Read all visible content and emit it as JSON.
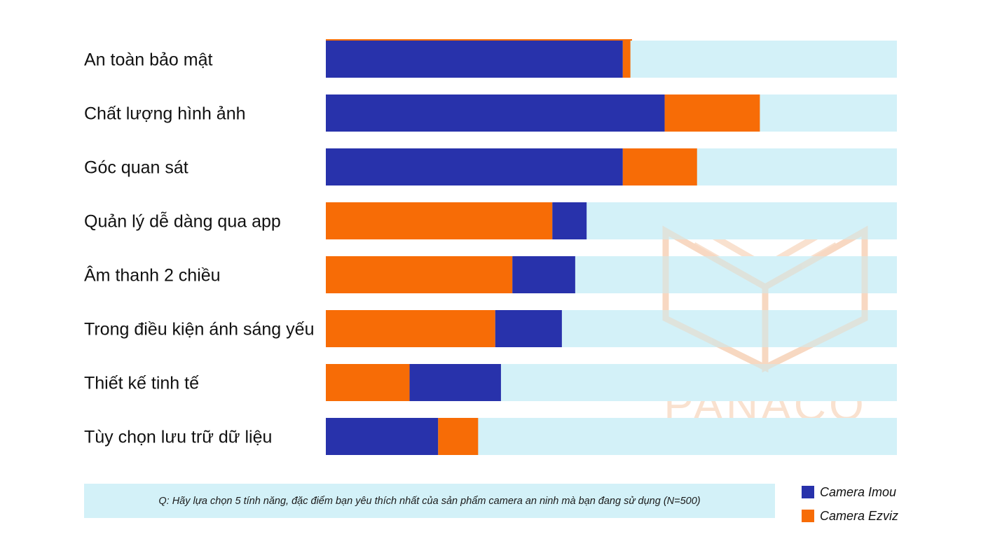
{
  "chart_data": {
    "type": "bar",
    "orientation": "horizontal",
    "stacked": true,
    "categories": [
      "An toàn bảo mật",
      "Chất lượng hình ảnh",
      "Góc quan sát",
      "Quản lý dễ dàng qua app",
      "Âm thanh 2 chiều",
      "Trong điều kiện ánh sáng yếu",
      "Thiết kế tinh tế",
      "Tùy chọn lưu trữ dữ liệu"
    ],
    "series": [
      {
        "name": "Camera Imou",
        "color": "#2832ab",
        "values": [
          78,
          89,
          78,
          9,
          16.5,
          17.5,
          24,
          29.5
        ]
      },
      {
        "name": "Camera Ezviz",
        "color": "#f76c06",
        "values": [
          2,
          25,
          19.5,
          59.5,
          49,
          44.5,
          22,
          10.5
        ]
      }
    ],
    "stack_order": [
      [
        "Camera Imou",
        "Camera Ezviz"
      ],
      [
        "Camera Imou",
        "Camera Ezviz"
      ],
      [
        "Camera Imou",
        "Camera Ezviz"
      ],
      [
        "Camera Ezviz",
        "Camera Imou"
      ],
      [
        "Camera Ezviz",
        "Camera Imou"
      ],
      [
        "Camera Ezviz",
        "Camera Imou"
      ],
      [
        "Camera Ezviz",
        "Camera Imou"
      ],
      [
        "Camera Imou",
        "Camera Ezviz"
      ]
    ],
    "xlim": [
      0,
      150
    ],
    "track_color": "#d3f1f8",
    "grid": false,
    "legend_position": "bottom-right",
    "footnote": "Q: Hãy lựa chọn 5 tính năng, đặc điểm bạn yêu thích nhất của sản phẩm camera an ninh mà bạn đang sử dụng (N=500)"
  },
  "watermark": {
    "text": "PANACO",
    "color": "#f5c9a8"
  },
  "legend": [
    {
      "label": "Camera Imou",
      "color": "#2832ab"
    },
    {
      "label": "Camera Ezviz",
      "color": "#f76c06"
    }
  ]
}
